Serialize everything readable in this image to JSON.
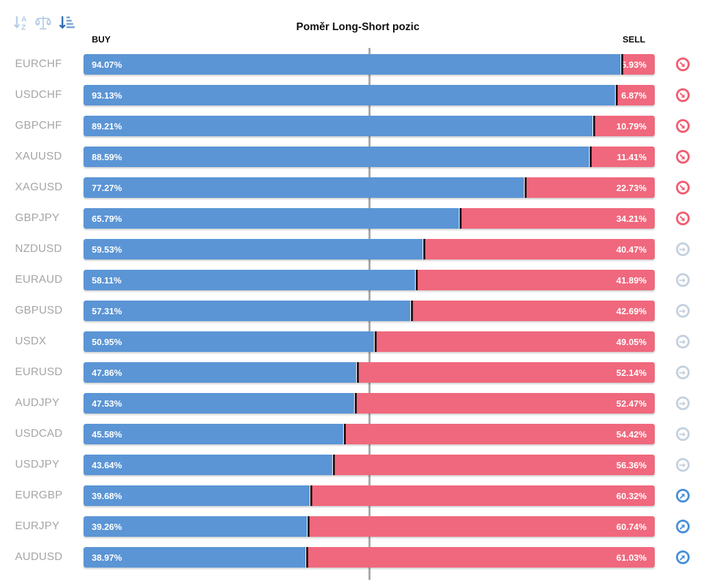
{
  "title": "Poměr Long-Short pozic",
  "axis": {
    "buy_label": "BUY",
    "sell_label": "SELL"
  },
  "toolbar": {
    "sort_alpha_icon": "sort-alphabetical",
    "balance_icon": "balance-scale",
    "sort_amount_icon": "sort-by-value-active"
  },
  "colors": {
    "buy_bar": "#5b95d5",
    "sell_bar": "#f0687d",
    "bar_divider": "#2b1418",
    "center_line": "#a8a8a8",
    "symbol_label": "#a5a5a5",
    "trend_down_icon": "#f25d72",
    "trend_flat_icon": "#c5d1de",
    "trend_up_icon": "#4a90d9"
  },
  "rows": [
    {
      "symbol": "EURCHF",
      "buy": "94.07%",
      "sell": "5.93%",
      "trend": "down"
    },
    {
      "symbol": "USDCHF",
      "buy": "93.13%",
      "sell": "6.87%",
      "trend": "down"
    },
    {
      "symbol": "GBPCHF",
      "buy": "89.21%",
      "sell": "10.79%",
      "trend": "down"
    },
    {
      "symbol": "XAUUSD",
      "buy": "88.59%",
      "sell": "11.41%",
      "trend": "down"
    },
    {
      "symbol": "XAGUSD",
      "buy": "77.27%",
      "sell": "22.73%",
      "trend": "down"
    },
    {
      "symbol": "GBPJPY",
      "buy": "65.79%",
      "sell": "34.21%",
      "trend": "down"
    },
    {
      "symbol": "NZDUSD",
      "buy": "59.53%",
      "sell": "40.47%",
      "trend": "flat"
    },
    {
      "symbol": "EURAUD",
      "buy": "58.11%",
      "sell": "41.89%",
      "trend": "flat"
    },
    {
      "symbol": "GBPUSD",
      "buy": "57.31%",
      "sell": "42.69%",
      "trend": "flat"
    },
    {
      "symbol": "USDX",
      "buy": "50.95%",
      "sell": "49.05%",
      "trend": "flat"
    },
    {
      "symbol": "EURUSD",
      "buy": "47.86%",
      "sell": "52.14%",
      "trend": "flat"
    },
    {
      "symbol": "AUDJPY",
      "buy": "47.53%",
      "sell": "52.47%",
      "trend": "flat"
    },
    {
      "symbol": "USDCAD",
      "buy": "45.58%",
      "sell": "54.42%",
      "trend": "flat"
    },
    {
      "symbol": "USDJPY",
      "buy": "43.64%",
      "sell": "56.36%",
      "trend": "flat"
    },
    {
      "symbol": "EURGBP",
      "buy": "39.68%",
      "sell": "60.32%",
      "trend": "up"
    },
    {
      "symbol": "EURJPY",
      "buy": "39.26%",
      "sell": "60.74%",
      "trend": "up"
    },
    {
      "symbol": "AUDUSD",
      "buy": "38.97%",
      "sell": "61.03%",
      "trend": "up"
    }
  ],
  "chart_data": {
    "type": "bar",
    "variant": "horizontal-stacked-100pct",
    "title": "Poměr Long-Short pozic",
    "categories": [
      "EURCHF",
      "USDCHF",
      "GBPCHF",
      "XAUUSD",
      "XAGUSD",
      "GBPJPY",
      "NZDUSD",
      "EURAUD",
      "GBPUSD",
      "USDX",
      "EURUSD",
      "AUDJPY",
      "USDCAD",
      "USDJPY",
      "EURGBP",
      "EURJPY",
      "AUDUSD"
    ],
    "series": [
      {
        "name": "BUY",
        "color": "#5b95d5",
        "values": [
          94.07,
          93.13,
          89.21,
          88.59,
          77.27,
          65.79,
          59.53,
          58.11,
          57.31,
          50.95,
          47.86,
          47.53,
          45.58,
          43.64,
          39.68,
          39.26,
          38.97
        ]
      },
      {
        "name": "SELL",
        "color": "#f0687d",
        "values": [
          5.93,
          6.87,
          10.79,
          11.41,
          22.73,
          34.21,
          40.47,
          41.89,
          42.69,
          49.05,
          52.14,
          52.47,
          54.42,
          56.36,
          60.32,
          60.74,
          61.03
        ]
      }
    ],
    "unit": "%",
    "xlim": [
      0,
      100
    ],
    "grid": false,
    "annotations": [
      "vertical gray reference line at 50%"
    ],
    "legend_position": "BUY label top-left of bars, SELL label top-right of bars",
    "trend_markers": {
      "down": "red circled down-right arrow",
      "flat": "gray circled right arrow",
      "up": "blue circled up-right arrow"
    }
  }
}
